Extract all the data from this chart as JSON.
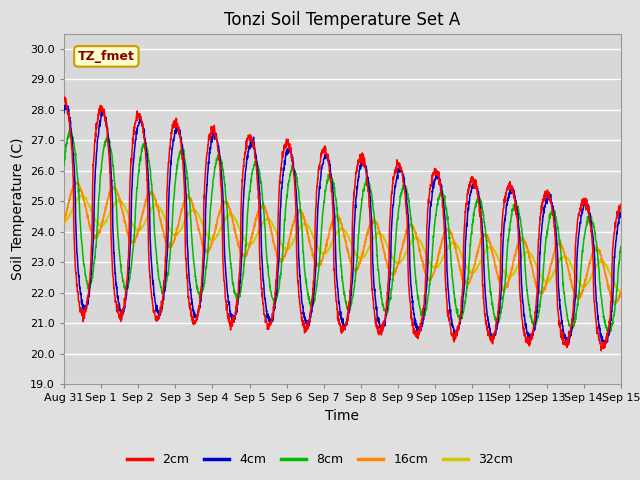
{
  "title": "Tonzi Soil Temperature Set A",
  "xlabel": "Time",
  "ylabel": "Soil Temperature (C)",
  "ylim": [
    19.0,
    30.5
  ],
  "yticks": [
    19.0,
    20.0,
    21.0,
    22.0,
    23.0,
    24.0,
    25.0,
    26.0,
    27.0,
    28.0,
    29.0,
    30.0
  ],
  "xtick_labels": [
    "Aug 31",
    "Sep 1",
    "Sep 2",
    "Sep 3",
    "Sep 4",
    "Sep 5",
    "Sep 6",
    "Sep 7",
    "Sep 8",
    "Sep 9",
    "Sep 10",
    "Sep 11",
    "Sep 12",
    "Sep 13",
    "Sep 14",
    "Sep 15"
  ],
  "colors": {
    "2cm": "#ff0000",
    "4cm": "#0000cc",
    "8cm": "#00bb00",
    "16cm": "#ff8800",
    "32cm": "#cccc00"
  },
  "fig_facecolor": "#e0e0e0",
  "bg_color": "#d8d8d8",
  "grid_color": "#ffffff",
  "label_box_text": "TZ_fmet",
  "label_box_facecolor": "#ffffcc",
  "label_box_edgecolor": "#cc9900"
}
